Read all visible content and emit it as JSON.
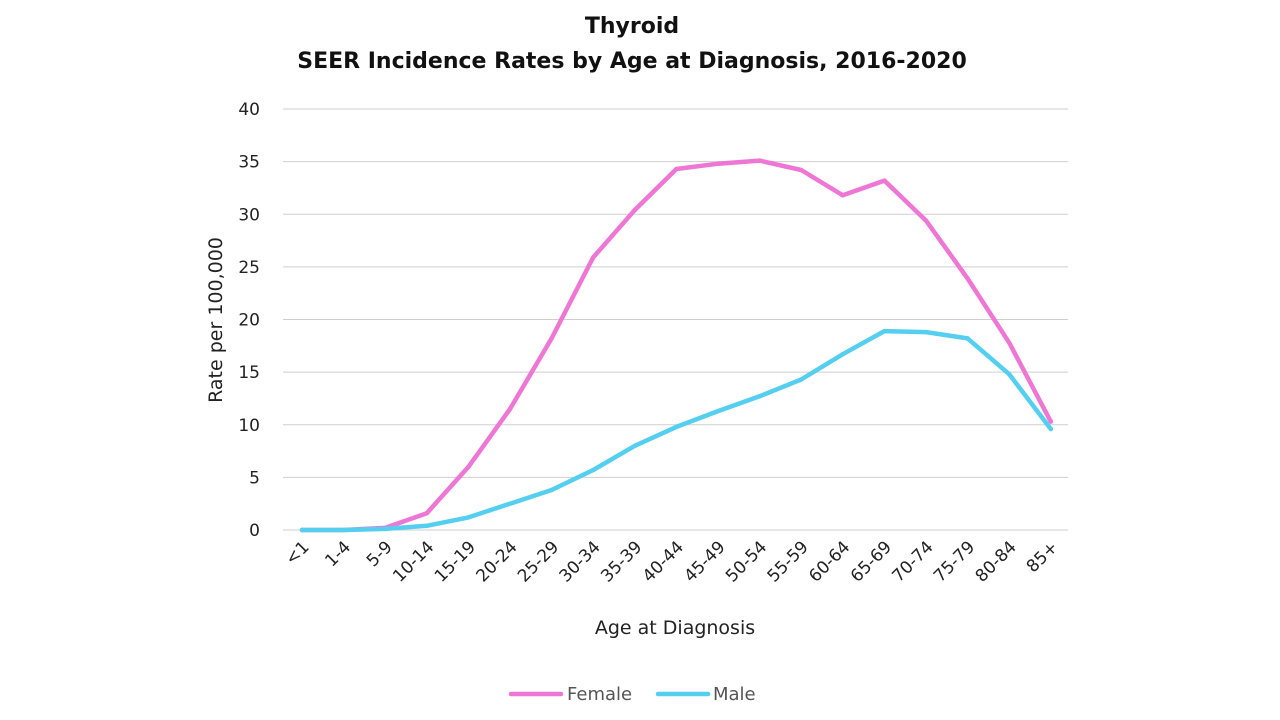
{
  "chart_data": {
    "type": "line",
    "title": "Thyroid",
    "subtitle": "SEER Incidence Rates by Age at Diagnosis, 2016-2020",
    "xlabel": "Age at Diagnosis",
    "ylabel": "Rate per 100,000",
    "ylim": [
      0,
      40
    ],
    "yticks": [
      0,
      5,
      10,
      15,
      20,
      25,
      30,
      35,
      40
    ],
    "grid": true,
    "legend_position": "bottom",
    "categories": [
      "<1",
      "1-4",
      "5-9",
      "10-14",
      "15-19",
      "20-24",
      "25-29",
      "30-34",
      "35-39",
      "40-44",
      "45-49",
      "50-54",
      "55-59",
      "60-64",
      "65-69",
      "70-74",
      "75-79",
      "80-84",
      "85+"
    ],
    "series": [
      {
        "name": "Female",
        "color": "#EE77D6",
        "values": [
          0.0,
          0.0,
          0.2,
          1.6,
          6.0,
          11.5,
          18.2,
          25.9,
          30.4,
          34.3,
          34.8,
          35.1,
          34.2,
          31.8,
          33.2,
          29.4,
          23.9,
          17.8,
          10.3
        ]
      },
      {
        "name": "Male",
        "color": "#55CFEF",
        "values": [
          0.0,
          0.0,
          0.1,
          0.4,
          1.2,
          2.5,
          3.8,
          5.7,
          8.0,
          9.8,
          11.3,
          12.7,
          14.3,
          16.7,
          18.9,
          18.8,
          18.2,
          14.8,
          9.6
        ]
      }
    ]
  }
}
